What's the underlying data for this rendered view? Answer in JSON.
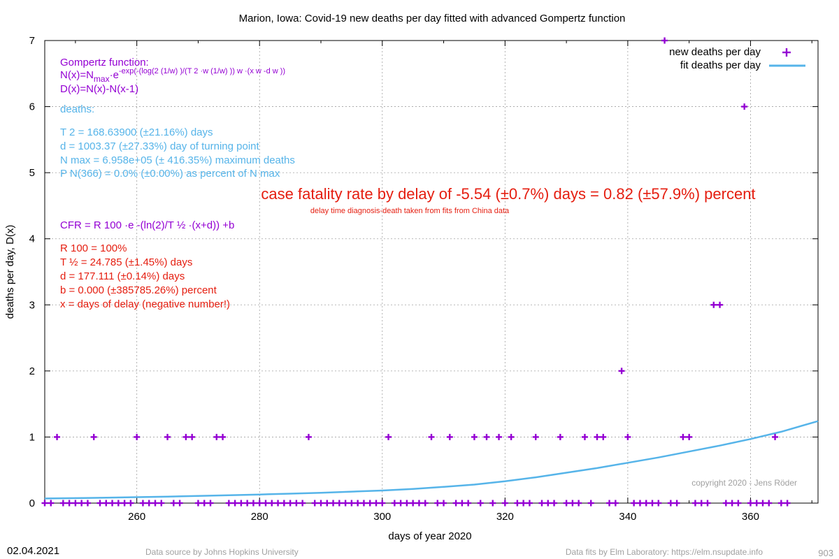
{
  "page": {
    "date": "02.04.2021",
    "source": "Data source by Johns Hopkins University",
    "fits": "Data fits by Elm Laboratory: https://elm.nsupdate.info",
    "page_number": "903",
    "copyright": "copyright 2020 - Jens Röder"
  },
  "colors": {
    "points": "#9400d3",
    "fit": "#56b4e9",
    "cfr": "#e51e10",
    "grid": "#a0a0a0"
  },
  "annotations": {
    "gompertz_title": "Gompertz function:",
    "gompertz_nx": "N(x)=N",
    "gompertz_nx_sub": "max",
    "gompertz_nx_exp": "·e",
    "gompertz_nx_sup": "-exp(-(log(2 (1/w) )/(T 2 ·w (1/w) )) w ·(x w -d w ))",
    "gompertz_dx": "D(x)=N(x)-N(x-1)",
    "deaths_header": "deaths:",
    "t2_line": "T 2 = 168.63900 (±21.16%) days",
    "d_line": "d = 1003.37 (±27.33%) day of turning point",
    "nmax_line": "N max = 6.958e+05 (± 416.35%) maximum deaths",
    "p_line": "P N(366) = 0.0% (±0.00%) as percent of N max",
    "cfr_big": "case fatality rate by delay of -5.54 (±0.7%) days = 0.82 (±57.9%) percent",
    "cfr_small": "delay time diagnosis-death taken from fits from China data",
    "cfr_formula": "CFR = R 100 ·e -(ln(2)/T ½ ·(x+d)) +b",
    "r100": "R 100 = 100%",
    "thalf": "T ½ = 24.785 (±1.45%) days",
    "d2": "d = 177.111 (±0.14%) days",
    "b": "b = 0.000 (±385785.26%) percent",
    "xdelay": "x = days of delay (negative number!)"
  },
  "chart_data": {
    "type": "scatter",
    "title": "Marion,  Iowa: Covid-19 new deaths per day fitted with advanced Gompertz function",
    "xlabel": "days of year 2020",
    "ylabel": "deaths per day, D(x)",
    "xlim": [
      245,
      371
    ],
    "ylim": [
      0,
      7
    ],
    "xticks": [
      260,
      280,
      300,
      320,
      340,
      360
    ],
    "yticks": [
      0,
      1,
      2,
      3,
      4,
      5,
      6,
      7
    ],
    "grid": true,
    "legend_position": "top-right",
    "series": [
      {
        "name": "new deaths per day",
        "style": "points",
        "x": [
          245,
          246,
          247,
          248,
          249,
          250,
          251,
          252,
          253,
          254,
          255,
          256,
          257,
          258,
          259,
          260,
          261,
          262,
          263,
          264,
          265,
          266,
          267,
          268,
          269,
          270,
          271,
          272,
          273,
          274,
          275,
          276,
          277,
          278,
          279,
          280,
          281,
          282,
          283,
          284,
          285,
          286,
          287,
          288,
          289,
          290,
          291,
          292,
          293,
          294,
          295,
          296,
          297,
          298,
          299,
          300,
          301,
          302,
          303,
          304,
          305,
          306,
          307,
          308,
          309,
          310,
          311,
          312,
          313,
          314,
          315,
          316,
          317,
          318,
          319,
          320,
          321,
          322,
          323,
          324,
          325,
          326,
          327,
          328,
          329,
          330,
          331,
          332,
          333,
          334,
          335,
          336,
          337,
          338,
          339,
          340,
          341,
          342,
          343,
          344,
          345,
          346,
          347,
          348,
          349,
          350,
          351,
          352,
          353,
          354,
          355,
          356,
          357,
          358,
          359,
          360,
          361,
          362,
          363,
          364,
          365,
          366
        ],
        "y": [
          0,
          0,
          1,
          0,
          0,
          0,
          0,
          0,
          1,
          0,
          0,
          0,
          0,
          0,
          0,
          1,
          0,
          0,
          0,
          0,
          1,
          0,
          0,
          1,
          1,
          0,
          0,
          0,
          1,
          1,
          0,
          0,
          0,
          0,
          0,
          0,
          0,
          0,
          0,
          0,
          0,
          0,
          0,
          1,
          0,
          0,
          0,
          0,
          0,
          0,
          0,
          0,
          0,
          0,
          0,
          0,
          1,
          0,
          0,
          0,
          0,
          0,
          0,
          1,
          0,
          0,
          1,
          0,
          0,
          0,
          1,
          0,
          1,
          0,
          1,
          0,
          1,
          0,
          0,
          0,
          1,
          0,
          0,
          0,
          1,
          0,
          0,
          0,
          1,
          0,
          1,
          1,
          0,
          0,
          2,
          1,
          0,
          0,
          0,
          0,
          0,
          7,
          0,
          0,
          1,
          1,
          0,
          0,
          0,
          3,
          3,
          0,
          0,
          0,
          6,
          0,
          0,
          0,
          0,
          1,
          0,
          0
        ]
      },
      {
        "name": "fit deaths per day",
        "style": "line",
        "x": [
          245,
          250,
          255,
          260,
          265,
          270,
          275,
          280,
          285,
          290,
          295,
          300,
          305,
          310,
          315,
          320,
          325,
          330,
          335,
          340,
          345,
          350,
          355,
          360,
          365,
          371
        ],
        "y": [
          0.07,
          0.075,
          0.082,
          0.09,
          0.098,
          0.108,
          0.118,
          0.13,
          0.143,
          0.157,
          0.173,
          0.19,
          0.215,
          0.245,
          0.28,
          0.33,
          0.39,
          0.46,
          0.53,
          0.61,
          0.69,
          0.78,
          0.87,
          0.97,
          1.08,
          1.24
        ]
      }
    ]
  }
}
